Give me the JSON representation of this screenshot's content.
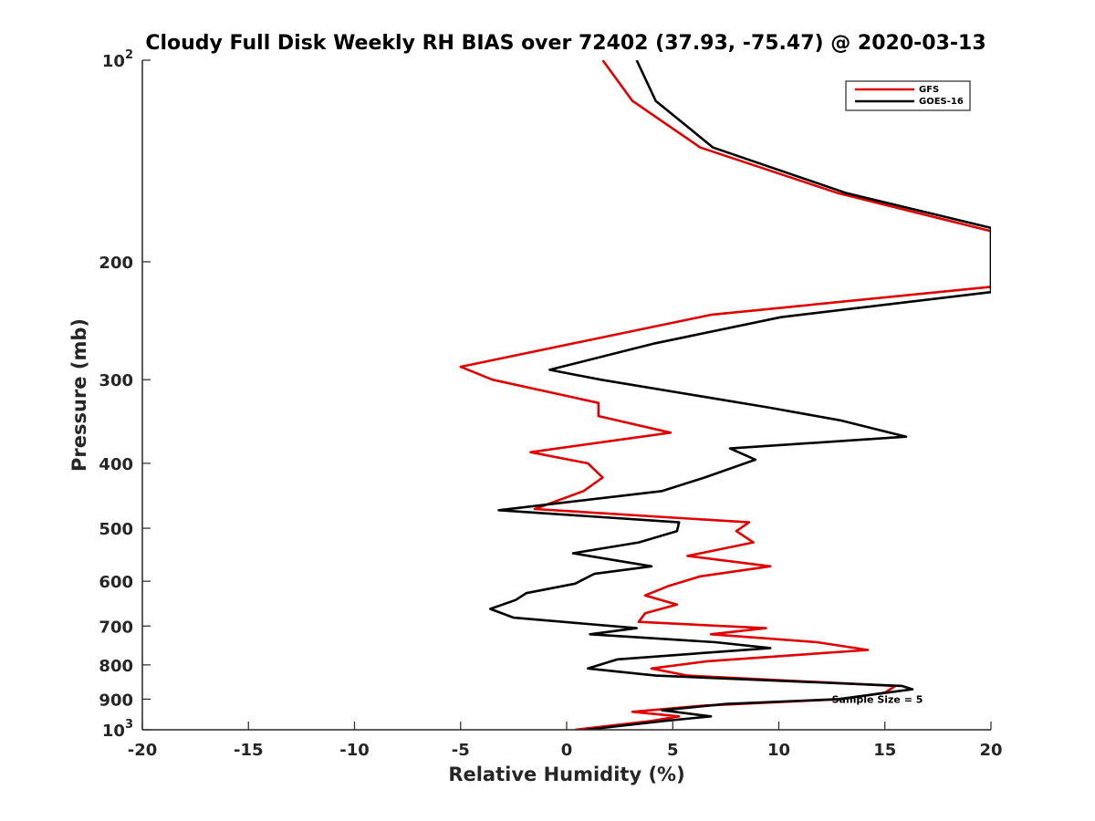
{
  "chart_data": {
    "type": "line",
    "title": "Cloudy Full Disk Weekly RH BIAS over 72402 (37.93, -75.47) @ 2020-03-13",
    "xlabel": "Relative Humidity (%)",
    "ylabel": "Pressure (mb)",
    "xlim": [
      -20,
      20
    ],
    "ylim": [
      100,
      1000
    ],
    "yscale": "log",
    "y_reversed": true,
    "grid": false,
    "legend_position": "top-right",
    "x_ticks": [
      -20,
      -15,
      -10,
      -5,
      0,
      5,
      10,
      15,
      20
    ],
    "x_tick_labels": [
      "-20",
      "-15",
      "-10",
      "-5",
      "0",
      "5",
      "10",
      "15",
      "20"
    ],
    "y_ticks": [
      {
        "value": 100,
        "base": "10",
        "exp": "2"
      },
      {
        "value": 200,
        "label": "200"
      },
      {
        "value": 300,
        "label": "300"
      },
      {
        "value": 400,
        "label": "400"
      },
      {
        "value": 500,
        "label": "500"
      },
      {
        "value": 600,
        "label": "600"
      },
      {
        "value": 700,
        "label": "700"
      },
      {
        "value": 800,
        "label": "800"
      },
      {
        "value": 900,
        "label": "900"
      },
      {
        "value": 1000,
        "base": "10",
        "exp": "3"
      }
    ],
    "annotation": {
      "text": "Sample Size = 5",
      "x": 12.5,
      "y": 900
    },
    "series": [
      {
        "name": "GFS",
        "color": "#e00000",
        "points": [
          [
            1.7,
            100
          ],
          [
            3.1,
            115
          ],
          [
            6.3,
            135
          ],
          [
            12.8,
            158
          ],
          [
            20,
            180
          ],
          [
            20,
            218
          ],
          [
            6.8,
            240
          ],
          [
            -5.0,
            287
          ],
          [
            -3.5,
            300
          ],
          [
            1.5,
            325
          ],
          [
            1.5,
            340
          ],
          [
            4.9,
            360
          ],
          [
            -1.7,
            385
          ],
          [
            1.0,
            400
          ],
          [
            1.7,
            420
          ],
          [
            0.8,
            440
          ],
          [
            -1.5,
            468
          ],
          [
            8.6,
            490
          ],
          [
            8.0,
            505
          ],
          [
            8.8,
            525
          ],
          [
            5.7,
            550
          ],
          [
            9.6,
            570
          ],
          [
            6.3,
            590
          ],
          [
            4.8,
            610
          ],
          [
            3.7,
            630
          ],
          [
            5.2,
            650
          ],
          [
            3.7,
            670
          ],
          [
            3.4,
            690
          ],
          [
            9.4,
            705
          ],
          [
            6.8,
            720
          ],
          [
            11.8,
            740
          ],
          [
            14.2,
            760
          ],
          [
            6.6,
            790
          ],
          [
            4.0,
            810
          ],
          [
            5.7,
            830
          ],
          [
            15.5,
            860
          ],
          [
            15.0,
            880
          ],
          [
            13.0,
            900
          ],
          [
            6.5,
            920
          ],
          [
            3.1,
            940
          ],
          [
            5.3,
            955
          ],
          [
            4.0,
            970
          ],
          [
            0.4,
            1000
          ]
        ]
      },
      {
        "name": "GOES-16",
        "color": "#000000",
        "points": [
          [
            3.3,
            100
          ],
          [
            4.2,
            115
          ],
          [
            6.9,
            135
          ],
          [
            13.2,
            158
          ],
          [
            20,
            178
          ],
          [
            20,
            222
          ],
          [
            10.1,
            242
          ],
          [
            4.1,
            265
          ],
          [
            -0.8,
            290
          ],
          [
            1.6,
            300
          ],
          [
            9.5,
            330
          ],
          [
            12.9,
            345
          ],
          [
            16.0,
            365
          ],
          [
            7.7,
            380
          ],
          [
            8.9,
            395
          ],
          [
            6.5,
            420
          ],
          [
            4.5,
            440
          ],
          [
            -3.2,
            470
          ],
          [
            5.3,
            490
          ],
          [
            5.2,
            505
          ],
          [
            3.4,
            525
          ],
          [
            0.3,
            545
          ],
          [
            4.0,
            570
          ],
          [
            1.3,
            585
          ],
          [
            0.4,
            605
          ],
          [
            -1.9,
            625
          ],
          [
            -2.4,
            640
          ],
          [
            -3.6,
            660
          ],
          [
            -2.5,
            680
          ],
          [
            3.3,
            705
          ],
          [
            1.1,
            720
          ],
          [
            7.0,
            740
          ],
          [
            9.6,
            755
          ],
          [
            2.4,
            785
          ],
          [
            1.0,
            810
          ],
          [
            4.2,
            830
          ],
          [
            15.8,
            860
          ],
          [
            16.3,
            870
          ],
          [
            12.8,
            900
          ],
          [
            7.5,
            915
          ],
          [
            4.5,
            935
          ],
          [
            6.8,
            955
          ],
          [
            4.6,
            970
          ],
          [
            0.9,
            1000
          ]
        ]
      }
    ]
  }
}
